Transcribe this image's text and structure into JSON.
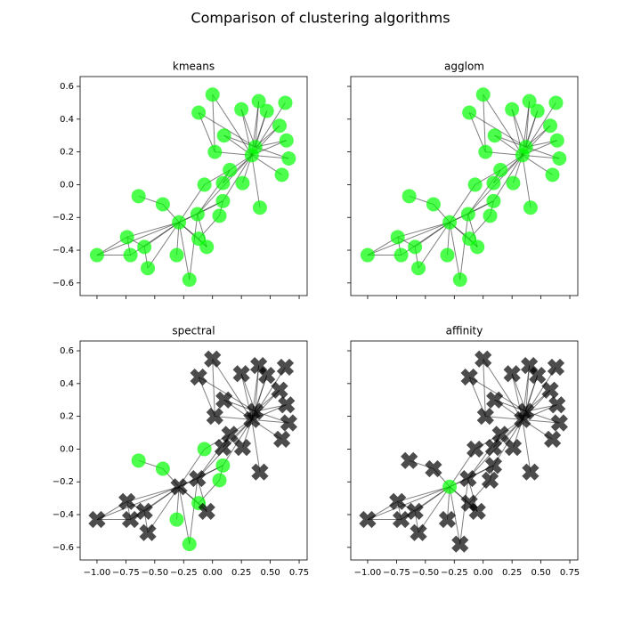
{
  "chart_data": {
    "type": "network",
    "title": "Comparison of clustering algorithms",
    "x": [
      0.0,
      -0.12,
      0.25,
      0.4,
      0.63,
      0.47,
      0.58,
      0.64,
      0.66,
      0.6,
      0.1,
      0.02,
      0.37,
      0.34,
      0.15,
      0.26,
      -0.07,
      0.09,
      0.41,
      0.09,
      0.06,
      -0.13,
      -0.29,
      -0.43,
      -0.64,
      -0.74,
      -1.0,
      -0.71,
      -0.59,
      -0.56,
      -0.31,
      -0.12,
      -0.05,
      -0.2
    ],
    "y": [
      0.55,
      0.44,
      0.46,
      0.51,
      0.5,
      0.45,
      0.36,
      0.27,
      0.16,
      0.06,
      0.3,
      0.2,
      0.23,
      0.18,
      0.09,
      0.01,
      0.0,
      0.01,
      -0.14,
      -0.1,
      -0.19,
      -0.18,
      -0.23,
      -0.12,
      -0.07,
      -0.32,
      -0.43,
      -0.43,
      -0.38,
      -0.51,
      -0.43,
      -0.33,
      -0.38,
      -0.58
    ],
    "edges": [
      [
        13,
        0
      ],
      [
        13,
        2
      ],
      [
        13,
        3
      ],
      [
        13,
        4
      ],
      [
        13,
        5
      ],
      [
        13,
        6
      ],
      [
        13,
        7
      ],
      [
        13,
        8
      ],
      [
        13,
        9
      ],
      [
        13,
        10
      ],
      [
        13,
        11
      ],
      [
        13,
        14
      ],
      [
        13,
        15
      ],
      [
        13,
        18
      ],
      [
        13,
        17
      ],
      [
        13,
        19
      ],
      [
        12,
        3
      ],
      [
        12,
        5
      ],
      [
        12,
        6
      ],
      [
        12,
        7
      ],
      [
        12,
        8
      ],
      [
        12,
        1
      ],
      [
        12,
        2
      ],
      [
        12,
        10
      ],
      [
        11,
        1
      ],
      [
        11,
        0
      ],
      [
        14,
        16
      ],
      [
        14,
        17
      ],
      [
        14,
        21
      ],
      [
        22,
        23
      ],
      [
        22,
        25
      ],
      [
        22,
        26
      ],
      [
        22,
        27
      ],
      [
        22,
        28
      ],
      [
        22,
        29
      ],
      [
        22,
        30
      ],
      [
        22,
        21
      ],
      [
        22,
        31
      ],
      [
        22,
        32
      ],
      [
        22,
        33
      ],
      [
        22,
        19
      ],
      [
        22,
        16
      ],
      [
        24,
        23
      ],
      [
        25,
        26
      ],
      [
        25,
        27
      ],
      [
        25,
        28
      ],
      [
        28,
        29
      ],
      [
        27,
        26
      ],
      [
        21,
        13
      ],
      [
        21,
        19
      ],
      [
        21,
        32
      ],
      [
        20,
        19
      ],
      [
        20,
        31
      ],
      [
        31,
        32
      ],
      [
        33,
        21
      ]
    ],
    "xlim": [
      -1.146,
      0.819
    ],
    "ylim": [
      -0.677,
      0.66
    ],
    "xticks": [
      {
        "value": -1,
        "label": "−1.00"
      },
      {
        "value": -0.75,
        "label": "−0.75"
      },
      {
        "value": -0.5,
        "label": "−0.50"
      },
      {
        "value": -0.25,
        "label": "−0.25"
      },
      {
        "value": 0,
        "label": "0.00"
      },
      {
        "value": 0.25,
        "label": "0.25"
      },
      {
        "value": 0.5,
        "label": "0.50"
      },
      {
        "value": 0.75,
        "label": "0.75"
      }
    ],
    "yticks": [
      {
        "value": -0.6,
        "label": "−0.6"
      },
      {
        "value": -0.4,
        "label": "−0.4"
      },
      {
        "value": -0.2,
        "label": "−0.2"
      },
      {
        "value": 0,
        "label": "0.0"
      },
      0.2,
      0.4,
      0.6
    ],
    "edge_color": "#000000",
    "edge_alpha": 0.5,
    "node_alpha": 0.7,
    "cluster_styles": [
      {
        "color": "#00ff00",
        "marker": "circle"
      },
      {
        "color": "#000000",
        "marker": "x"
      }
    ],
    "panels": [
      {
        "title": "kmeans",
        "clusters": [
          0,
          0,
          0,
          0,
          0,
          0,
          0,
          0,
          0,
          0,
          0,
          0,
          0,
          0,
          0,
          0,
          0,
          0,
          0,
          0,
          0,
          0,
          0,
          0,
          0,
          0,
          0,
          0,
          0,
          0,
          0,
          0,
          0,
          0
        ]
      },
      {
        "title": "agglom",
        "clusters": [
          0,
          0,
          0,
          0,
          0,
          0,
          0,
          0,
          0,
          0,
          0,
          0,
          0,
          0,
          0,
          0,
          0,
          0,
          0,
          0,
          0,
          0,
          0,
          0,
          0,
          0,
          0,
          0,
          0,
          0,
          0,
          0,
          0,
          0
        ]
      },
      {
        "title": "spectral",
        "clusters": [
          1,
          1,
          1,
          1,
          1,
          1,
          1,
          1,
          1,
          1,
          1,
          1,
          1,
          1,
          1,
          1,
          0,
          1,
          1,
          0,
          0,
          1,
          1,
          0,
          0,
          1,
          1,
          1,
          1,
          1,
          0,
          0,
          1,
          0
        ]
      },
      {
        "title": "affinity",
        "clusters": [
          1,
          1,
          1,
          1,
          1,
          1,
          1,
          1,
          1,
          1,
          1,
          1,
          1,
          1,
          1,
          1,
          1,
          1,
          1,
          1,
          1,
          1,
          0,
          1,
          1,
          1,
          1,
          1,
          1,
          1,
          1,
          1,
          1,
          1
        ]
      }
    ]
  }
}
